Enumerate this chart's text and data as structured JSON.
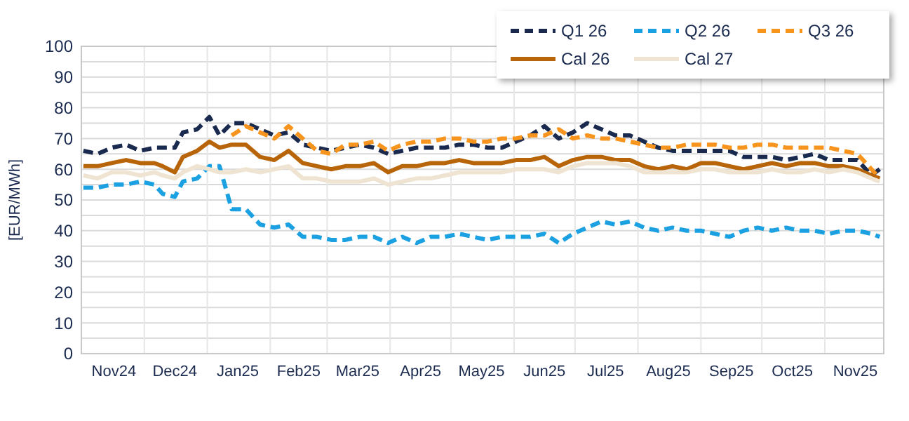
{
  "chart_data": {
    "type": "line",
    "ylabel": "[EUR/MWh]",
    "ylim": [
      0,
      100
    ],
    "yticks": [
      0,
      {
        "value": 5,
        "label": null
      },
      10,
      {
        "value": 15,
        "label": null
      },
      20,
      {
        "value": 25,
        "label": null
      },
      30,
      {
        "value": 35,
        "label": null
      },
      40,
      {
        "value": 45,
        "label": null
      },
      50,
      {
        "value": 55,
        "label": null
      },
      60,
      {
        "value": 65,
        "label": null
      },
      70,
      {
        "value": 75,
        "label": null
      },
      80,
      {
        "value": 85,
        "label": null
      },
      90,
      {
        "value": 95,
        "label": null
      },
      100
    ],
    "xlim": [
      "2024-10-31",
      "2025-11-30"
    ],
    "xticks": [
      {
        "value": "2024-11-16",
        "label": "Nov24"
      },
      {
        "value": "2024-12-01",
        "label": null
      },
      {
        "value": "2024-12-16",
        "label": "Dec24"
      },
      {
        "value": "2025-01-01",
        "label": null
      },
      {
        "value": "2025-01-16",
        "label": "Jan25"
      },
      {
        "value": "2025-02-01",
        "label": null
      },
      {
        "value": "2025-02-15",
        "label": "Feb25"
      },
      {
        "value": "2025-03-01",
        "label": null
      },
      {
        "value": "2025-03-16",
        "label": "Mar25"
      },
      {
        "value": "2025-04-01",
        "label": null
      },
      {
        "value": "2025-04-16",
        "label": "Apr25"
      },
      {
        "value": "2025-05-01",
        "label": null
      },
      {
        "value": "2025-05-16",
        "label": "May25"
      },
      {
        "value": "2025-06-01",
        "label": null
      },
      {
        "value": "2025-06-16",
        "label": "Jun25"
      },
      {
        "value": "2025-07-01",
        "label": null
      },
      {
        "value": "2025-07-16",
        "label": "Jul25"
      },
      {
        "value": "2025-08-01",
        "label": null
      },
      {
        "value": "2025-08-16",
        "label": "Aug25"
      },
      {
        "value": "2025-09-01",
        "label": null
      },
      {
        "value": "2025-09-16",
        "label": "Sep25"
      },
      {
        "value": "2025-10-01",
        "label": null
      },
      {
        "value": "2025-10-16",
        "label": "Oct25"
      },
      {
        "value": "2025-11-01",
        "label": null
      },
      {
        "value": "2025-11-16",
        "label": "Nov25"
      }
    ],
    "x": [
      "2024-11-01",
      "2024-11-08",
      "2024-11-15",
      "2024-11-22",
      "2024-11-29",
      "2024-12-06",
      "2024-12-10",
      "2024-12-16",
      "2024-12-20",
      "2024-12-27",
      "2025-01-02",
      "2025-01-07",
      "2025-01-13",
      "2025-01-20",
      "2025-01-27",
      "2025-02-03",
      "2025-02-10",
      "2025-02-17",
      "2025-02-24",
      "2025-03-03",
      "2025-03-10",
      "2025-03-17",
      "2025-03-24",
      "2025-03-31",
      "2025-04-07",
      "2025-04-14",
      "2025-04-21",
      "2025-04-28",
      "2025-05-05",
      "2025-05-12",
      "2025-05-19",
      "2025-05-26",
      "2025-06-02",
      "2025-06-09",
      "2025-06-16",
      "2025-06-23",
      "2025-06-30",
      "2025-07-07",
      "2025-07-14",
      "2025-07-21",
      "2025-07-28",
      "2025-08-04",
      "2025-08-11",
      "2025-08-18",
      "2025-08-25",
      "2025-09-01",
      "2025-09-08",
      "2025-09-15",
      "2025-09-22",
      "2025-09-29",
      "2025-10-06",
      "2025-10-13",
      "2025-10-20",
      "2025-10-27",
      "2025-11-03",
      "2025-11-10",
      "2025-11-17",
      "2025-11-24",
      "2025-11-28"
    ],
    "grid": true,
    "legend": "top right",
    "marker": "none",
    "series": [
      {
        "name": "Q1 26",
        "color": "#1a2a4f",
        "line_style": "dashed",
        "values": [
          66,
          65,
          67,
          68,
          66,
          67,
          67,
          67,
          72,
          73,
          77,
          71,
          75,
          75,
          73,
          71,
          72,
          68,
          67,
          66,
          67,
          68,
          67,
          65,
          66,
          67,
          67,
          67,
          68,
          68,
          67,
          67,
          69,
          71,
          74,
          70,
          72,
          75,
          73,
          71,
          71,
          69,
          67,
          66,
          66,
          66,
          66,
          66,
          64,
          64,
          64,
          63,
          64,
          65,
          63,
          63,
          63,
          58,
          60
        ]
      },
      {
        "name": "Q2 26",
        "color": "#1ba1e2",
        "line_style": "dashed",
        "values": [
          54,
          54,
          55,
          55,
          56,
          55,
          52,
          51,
          56,
          57,
          61,
          61,
          47,
          47,
          42,
          41,
          42,
          38,
          38,
          37,
          37,
          38,
          38,
          36,
          38,
          36,
          38,
          38,
          39,
          38,
          37,
          38,
          38,
          38,
          39,
          36,
          39,
          41,
          43,
          42,
          43,
          41,
          40,
          41,
          40,
          40,
          39,
          38,
          40,
          41,
          40,
          41,
          40,
          40,
          39,
          40,
          40,
          39,
          38
        ]
      },
      {
        "name": "Q3 26",
        "color": "#f7941d",
        "line_style": "dashed",
        "values": [
          null,
          null,
          null,
          null,
          null,
          null,
          null,
          null,
          null,
          null,
          null,
          null,
          71,
          74,
          72,
          70,
          74,
          70,
          66,
          65,
          68,
          68,
          69,
          66,
          68,
          69,
          69,
          70,
          70,
          69,
          69,
          70,
          70,
          71,
          71,
          73,
          70,
          71,
          70,
          70,
          69,
          68,
          67,
          67,
          68,
          68,
          68,
          67,
          67,
          68,
          68,
          67,
          67,
          67,
          67,
          66,
          65,
          60,
          57
        ]
      },
      {
        "name": "Cal 26",
        "color": "#b8650a",
        "line_style": "solid",
        "values": [
          61,
          61,
          62,
          63,
          62,
          62,
          61,
          59,
          64,
          66,
          69,
          67,
          68,
          68,
          64,
          63,
          66,
          62,
          61,
          60,
          61,
          61,
          62,
          59,
          61,
          61,
          62,
          62,
          63,
          62,
          62,
          62,
          63,
          63,
          64,
          61,
          63,
          64,
          64,
          63,
          63,
          61,
          60,
          61,
          60,
          62,
          62,
          61,
          60,
          61,
          62,
          61,
          62,
          62,
          61,
          61,
          60,
          58,
          57
        ]
      },
      {
        "name": "Cal 27",
        "color": "#efe3d1",
        "line_style": "solid",
        "values": [
          58,
          57,
          59,
          59,
          58,
          59,
          58,
          57,
          59,
          61,
          60,
          59,
          59,
          60,
          59,
          60,
          61,
          57,
          57,
          56,
          56,
          56,
          57,
          55,
          56,
          57,
          57,
          58,
          59,
          59,
          59,
          59,
          60,
          60,
          60,
          59,
          61,
          62,
          62,
          62,
          61,
          59,
          59,
          59,
          59,
          60,
          60,
          59,
          59,
          59,
          60,
          59,
          59,
          60,
          59,
          60,
          59,
          57,
          56
        ]
      }
    ]
  }
}
